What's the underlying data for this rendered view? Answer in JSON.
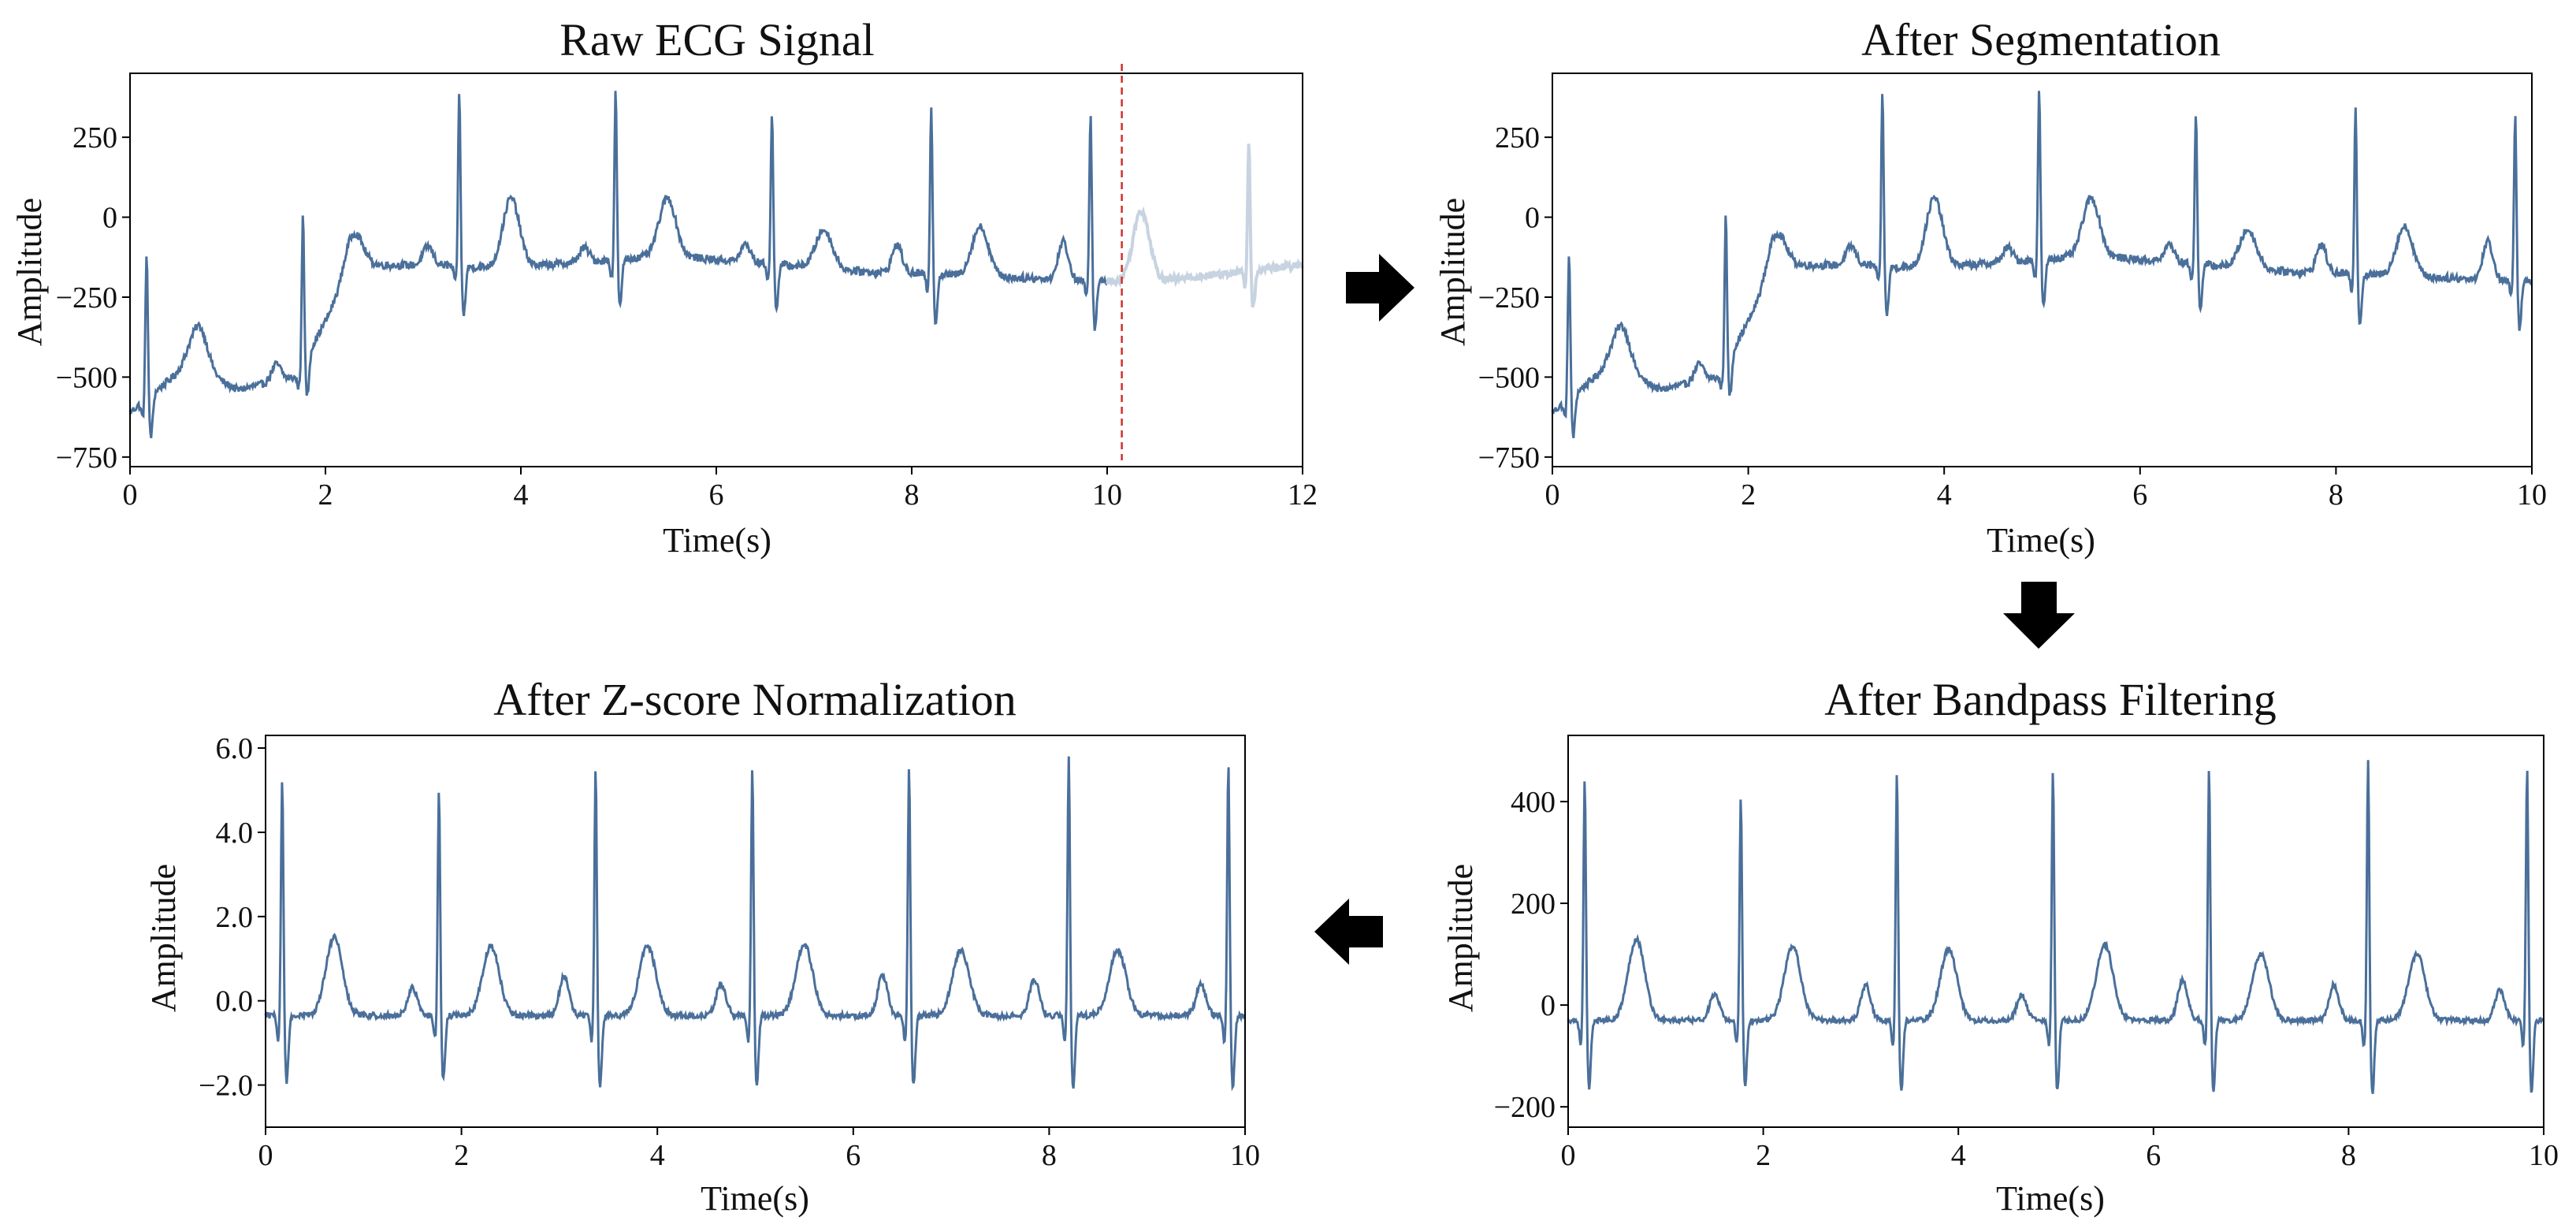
{
  "colors": {
    "line": "#4a6f9a",
    "faded": "#c8d3e1",
    "cutoff": "#d0302a",
    "arrow": "#000000"
  },
  "flow_arrows": [
    "right-arrow-icon",
    "down-arrow-icon",
    "left-arrow-icon"
  ],
  "chart_data": [
    {
      "id": "raw",
      "type": "line",
      "title": "Raw ECG Signal",
      "xlabel": "Time(s)",
      "ylabel": "Amplitude",
      "xlim": [
        0,
        12
      ],
      "ylim": [
        -780,
        450
      ],
      "xticks": [
        0,
        2,
        4,
        6,
        8,
        10,
        12
      ],
      "yticks": [
        -750,
        -500,
        -250,
        0,
        250
      ],
      "ytick_labels": [
        "−750",
        "−500",
        "−250",
        "0",
        "250"
      ],
      "grid": false,
      "kept_until_s": 10,
      "cutoff_marker_s": 10.15,
      "baseline": [
        [
          0,
          -610
        ],
        [
          0.6,
          -460
        ],
        [
          1.1,
          -540
        ],
        [
          1.7,
          -500
        ],
        [
          2.3,
          -150
        ],
        [
          3.2,
          -150
        ],
        [
          3.8,
          -160
        ],
        [
          5.5,
          -120
        ],
        [
          7.5,
          -170
        ],
        [
          10,
          -200
        ],
        [
          10.5,
          -200
        ],
        [
          12,
          -150
        ]
      ],
      "r_peaks_s": [
        0.17,
        1.77,
        3.37,
        4.97,
        6.57,
        8.2,
        9.83,
        11.45
      ],
      "r_peak_values": [
        -100,
        10,
        395,
        400,
        330,
        355,
        335,
        250
      ],
      "t_waves_s": [
        0.7,
        2.3,
        3.9,
        5.5,
        7.1,
        8.7,
        10.35
      ],
      "t_wave_values": [
        -340,
        -50,
        60,
        60,
        -40,
        -30,
        20
      ],
      "small_waves_s": [
        1.5,
        3.05,
        4.65,
        6.3,
        7.85,
        9.55
      ],
      "small_wave_values": [
        -460,
        -90,
        -95,
        -85,
        -85,
        -75
      ],
      "noise": 12
    },
    {
      "id": "segmented",
      "type": "line",
      "title": "After Segmentation",
      "xlabel": "Time(s)",
      "ylabel": "Amplitude",
      "xlim": [
        0,
        10
      ],
      "ylim": [
        -780,
        450
      ],
      "xticks": [
        0,
        2,
        4,
        6,
        8,
        10
      ],
      "yticks": [
        -750,
        -500,
        -250,
        0,
        250
      ],
      "ytick_labels": [
        "−750",
        "−500",
        "−250",
        "0",
        "250"
      ],
      "grid": false,
      "baseline": [
        [
          0,
          -610
        ],
        [
          0.6,
          -460
        ],
        [
          1.1,
          -540
        ],
        [
          1.7,
          -500
        ],
        [
          2.3,
          -150
        ],
        [
          3.2,
          -150
        ],
        [
          3.8,
          -160
        ],
        [
          5.5,
          -120
        ],
        [
          7.5,
          -170
        ],
        [
          10,
          -200
        ]
      ],
      "r_peaks_s": [
        0.17,
        1.77,
        3.37,
        4.97,
        6.57,
        8.2,
        9.83
      ],
      "r_peak_values": [
        -100,
        10,
        395,
        400,
        330,
        355,
        335
      ],
      "t_waves_s": [
        0.7,
        2.3,
        3.9,
        5.5,
        7.1,
        8.7
      ],
      "t_wave_values": [
        -340,
        -50,
        60,
        60,
        -40,
        -30
      ],
      "small_waves_s": [
        1.5,
        3.05,
        4.65,
        6.3,
        7.85,
        9.55
      ],
      "small_wave_values": [
        -460,
        -90,
        -95,
        -85,
        -85,
        -75
      ],
      "noise": 12
    },
    {
      "id": "bandpass",
      "type": "line",
      "title": "After Bandpass Filtering",
      "xlabel": "Time(s)",
      "ylabel": "Amplitude",
      "xlim": [
        0,
        10
      ],
      "ylim": [
        -240,
        530
      ],
      "xticks": [
        0,
        2,
        4,
        6,
        8,
        10
      ],
      "yticks": [
        -200,
        0,
        200,
        400
      ],
      "ytick_labels": [
        "−200",
        "0",
        "200",
        "400"
      ],
      "grid": false,
      "baseline": [
        [
          0,
          -30
        ],
        [
          10,
          -30
        ]
      ],
      "r_peaks_s": [
        0.17,
        1.77,
        3.37,
        4.97,
        6.57,
        8.2,
        9.83
      ],
      "r_peak_values": [
        450,
        420,
        470,
        470,
        470,
        490,
        475
      ],
      "t_waves_s": [
        0.7,
        2.3,
        3.9,
        5.5,
        7.1,
        8.7
      ],
      "t_wave_values": [
        130,
        115,
        110,
        120,
        100,
        100
      ],
      "small_waves_s": [
        1.5,
        3.05,
        4.65,
        6.3,
        7.85,
        9.55
      ],
      "small_wave_values": [
        20,
        40,
        20,
        50,
        40,
        30
      ],
      "noise": 5
    },
    {
      "id": "zscore",
      "type": "line",
      "title": "After Z-score Normalization",
      "xlabel": "Time(s)",
      "ylabel": "Amplitude",
      "xlim": [
        0,
        10
      ],
      "ylim": [
        -3.0,
        6.3
      ],
      "xticks": [
        0,
        2,
        4,
        6,
        8,
        10
      ],
      "yticks": [
        -2.0,
        0.0,
        2.0,
        4.0,
        6.0
      ],
      "ytick_labels": [
        "−2.0",
        "0.0",
        "2.0",
        "4.0",
        "6.0"
      ],
      "grid": false,
      "baseline": [
        [
          0,
          -0.35
        ],
        [
          10,
          -0.35
        ]
      ],
      "r_peaks_s": [
        0.17,
        1.77,
        3.37,
        4.97,
        6.57,
        8.2,
        9.83
      ],
      "r_peak_values": [
        5.4,
        5.05,
        5.65,
        5.6,
        5.65,
        5.9,
        5.7
      ],
      "t_waves_s": [
        0.7,
        2.3,
        3.9,
        5.5,
        7.1,
        8.7
      ],
      "t_wave_values": [
        1.5,
        1.3,
        1.3,
        1.35,
        1.2,
        1.2
      ],
      "small_waves_s": [
        1.5,
        3.05,
        4.65,
        6.3,
        7.85,
        9.55
      ],
      "small_wave_values": [
        0.3,
        0.6,
        0.4,
        0.6,
        0.5,
        0.4
      ],
      "noise": 0.07
    }
  ]
}
